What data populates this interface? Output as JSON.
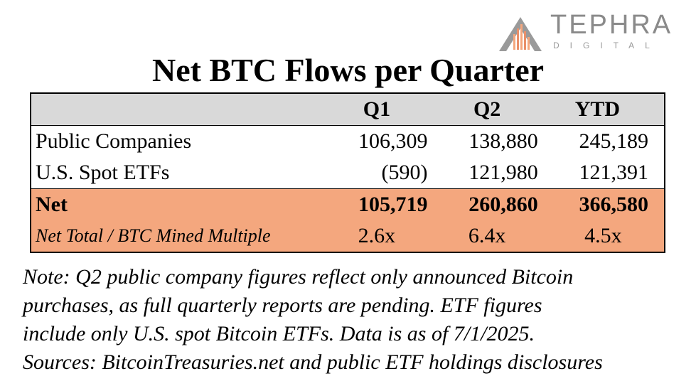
{
  "logo": {
    "word": "TEPHRA",
    "sub": "DIGITAL",
    "icon": "mountain-bars-icon"
  },
  "chart_data": {
    "type": "table",
    "title": "Net BTC Flows per Quarter",
    "columns": [
      "",
      "Q1",
      "Q2",
      "YTD"
    ],
    "rows": [
      {
        "label": "Public Companies",
        "values": [
          "106,309",
          "138,880",
          "245,189"
        ]
      },
      {
        "label": "U.S. Spot ETFs",
        "values": [
          "(590)",
          "121,980",
          "121,391"
        ]
      },
      {
        "label": "Net",
        "values": [
          "105,719",
          "260,860",
          "366,580"
        ]
      },
      {
        "label": "Net Total / BTC Mined Multiple",
        "values": [
          "2.6x",
          "6.4x",
          "4.5x"
        ]
      }
    ],
    "colors": {
      "header": "#d9d9d9",
      "highlight": "#f4a77e"
    }
  },
  "note": {
    "lines": [
      "Note: Q2 public company figures reflect only announced Bitcoin",
      "purchases, as full quarterly reports are pending. ETF figures",
      "include only U.S. spot Bitcoin ETFs. Data is as of 7/1/2025.",
      "Sources: BitcoinTreasuries.net and public ETF holdings disclosures"
    ]
  }
}
